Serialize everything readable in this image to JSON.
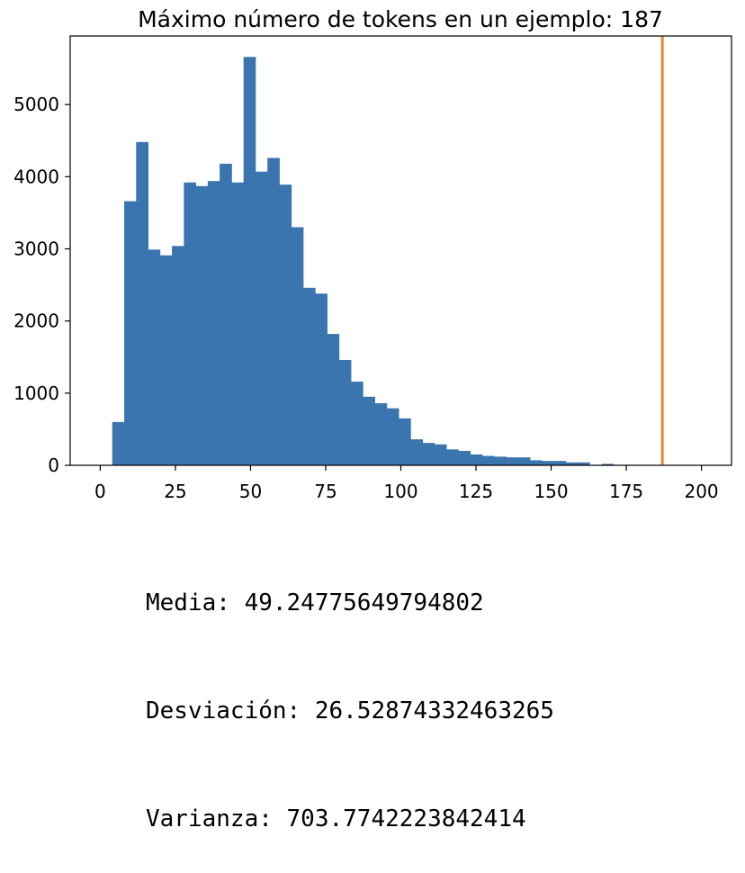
{
  "chart_data": {
    "type": "bar",
    "title": "Máximo número de tokens en un ejemplo: 187",
    "xlabel": "",
    "ylabel": "",
    "xlim": [
      -10,
      210
    ],
    "ylim": [
      0,
      5950
    ],
    "xticks": [
      0,
      25,
      50,
      75,
      100,
      125,
      150,
      175,
      200
    ],
    "yticks": [
      0,
      1000,
      2000,
      3000,
      4000,
      5000
    ],
    "bin_start": 4.0,
    "bin_width": 3.97,
    "values": [
      600,
      3660,
      4480,
      2990,
      2910,
      3040,
      3920,
      3870,
      3940,
      4180,
      3920,
      5660,
      4070,
      4260,
      3890,
      3300,
      2460,
      2380,
      1820,
      1460,
      1160,
      950,
      860,
      790,
      650,
      360,
      310,
      290,
      220,
      200,
      150,
      130,
      120,
      110,
      110,
      70,
      60,
      60,
      40,
      40,
      0,
      20,
      0,
      0
    ],
    "bar_color": "#3b75af",
    "vline": {
      "x": 187,
      "color": "#ef8636"
    },
    "grid": false
  },
  "stats": {
    "media": "Media: 49.24775649794802",
    "desviacion": "Desviación: 26.52874332463265",
    "varianza": "Varianza: 703.7742223842414"
  }
}
